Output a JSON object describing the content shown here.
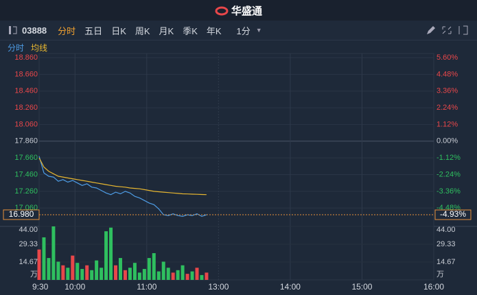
{
  "header": {
    "logo": "华盛通"
  },
  "toolbar": {
    "code": "03888",
    "tabs": [
      "分时",
      "五日",
      "日K",
      "周K",
      "月K",
      "季K",
      "年K"
    ],
    "interval": "1分"
  },
  "chart_data": [
    {
      "type": "line",
      "x": [
        0,
        4,
        8,
        12,
        16,
        20,
        24,
        28,
        32,
        36,
        40,
        44,
        48,
        52,
        56,
        60,
        64,
        68,
        72,
        76,
        80,
        84,
        88,
        92,
        96,
        100,
        104,
        108,
        112,
        116,
        120,
        124,
        128,
        132,
        136,
        140
      ],
      "xlim": [
        0,
        330
      ],
      "series": [
        {
          "name": "分时",
          "color": "#4e9de6",
          "values": [
            17.68,
            17.48,
            17.44,
            17.43,
            17.38,
            17.4,
            17.37,
            17.39,
            17.36,
            17.33,
            17.35,
            17.31,
            17.3,
            17.27,
            17.24,
            17.22,
            17.25,
            17.23,
            17.26,
            17.24,
            17.2,
            17.18,
            17.15,
            17.12,
            17.1,
            17.05,
            16.98,
            16.97,
            16.99,
            16.97,
            16.96,
            16.98,
            16.97,
            16.99,
            16.96,
            16.98
          ]
        },
        {
          "name": "均线",
          "color": "#e8b730",
          "values": [
            17.66,
            17.55,
            17.5,
            17.47,
            17.44,
            17.43,
            17.42,
            17.41,
            17.4,
            17.39,
            17.38,
            17.37,
            17.36,
            17.35,
            17.34,
            17.33,
            17.32,
            17.315,
            17.31,
            17.3,
            17.295,
            17.29,
            17.28,
            17.27,
            17.26,
            17.255,
            17.25,
            17.245,
            17.24,
            17.235,
            17.23,
            17.228,
            17.226,
            17.224,
            17.222,
            17.22
          ]
        }
      ],
      "ylim": [
        16.84,
        18.86
      ],
      "yticks": [
        {
          "value": 18.86,
          "label": "18.860"
        },
        {
          "value": 18.66,
          "label": "18.660"
        },
        {
          "value": 18.46,
          "label": "18.460"
        },
        {
          "value": 18.26,
          "label": "18.260"
        },
        {
          "value": 18.06,
          "label": "18.060"
        },
        {
          "value": 17.86,
          "label": "17.860"
        },
        {
          "value": 17.66,
          "label": "17.660"
        },
        {
          "value": 17.46,
          "label": "17.460"
        },
        {
          "value": 17.26,
          "label": "17.260"
        },
        {
          "value": 17.06,
          "label": "17.060"
        }
      ],
      "y2lim": [
        -5.71,
        5.6
      ],
      "y2ticks": [
        {
          "value": 5.6,
          "label": "5.60%"
        },
        {
          "value": 4.48,
          "label": "4.48%"
        },
        {
          "value": 3.36,
          "label": "3.36%"
        },
        {
          "value": 2.24,
          "label": "2.24%"
        },
        {
          "value": 1.12,
          "label": "1.12%"
        },
        {
          "value": 0,
          "label": "0.00%"
        },
        {
          "value": -1.12,
          "label": "-1.12%"
        },
        {
          "value": -2.24,
          "label": "-2.24%"
        },
        {
          "value": -3.36,
          "label": "-3.36%"
        },
        {
          "value": -4.48,
          "label": "-4.48%"
        }
      ],
      "last_price": {
        "value": 16.98,
        "label": "16.980"
      },
      "last_change": {
        "value": -4.93,
        "label": "-4.93%"
      },
      "up_color": "#e8474a",
      "down_color": "#2fbf5f",
      "grid": true
    },
    {
      "type": "bar",
      "x": [
        0,
        4,
        8,
        12,
        16,
        20,
        24,
        28,
        32,
        36,
        40,
        44,
        48,
        52,
        56,
        60,
        64,
        68,
        72,
        76,
        80,
        84,
        88,
        92,
        96,
        100,
        104,
        108,
        112,
        116,
        120,
        124,
        128,
        132,
        136,
        140
      ],
      "values": [
        25,
        35,
        18,
        44,
        15,
        12,
        10,
        20,
        14,
        9,
        12,
        8,
        16,
        10,
        40,
        43,
        12,
        18,
        8,
        10,
        14,
        6,
        9,
        18,
        22,
        7,
        15,
        10,
        6,
        8,
        12,
        5,
        7,
        10,
        4,
        6
      ],
      "ylim": [
        0,
        44
      ],
      "yticks": [
        {
          "value": 14.67,
          "label": "14.67"
        },
        {
          "value": 29.33,
          "label": "29.33"
        },
        {
          "value": 44,
          "label": "44.00"
        }
      ],
      "unit": "万",
      "xlim": [
        0,
        330
      ],
      "xticks": [
        {
          "value": 0,
          "label": "9:30"
        },
        {
          "value": 30,
          "label": "10:00"
        },
        {
          "value": 90,
          "label": "11:00"
        },
        {
          "value": 150,
          "label": "13:00"
        },
        {
          "value": 210,
          "label": "14:00"
        },
        {
          "value": 270,
          "label": "15:00"
        },
        {
          "value": 330,
          "label": "16:00"
        }
      ]
    }
  ]
}
